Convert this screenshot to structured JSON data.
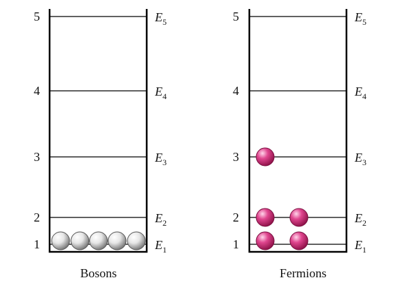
{
  "panels": [
    {
      "caption": "Bosons",
      "levels": [
        {
          "number": "1",
          "energy_symbol": "E",
          "energy_subscript": "1",
          "particles": 5
        },
        {
          "number": "2",
          "energy_symbol": "E",
          "energy_subscript": "2",
          "particles": 0
        },
        {
          "number": "3",
          "energy_symbol": "E",
          "energy_subscript": "3",
          "particles": 0
        },
        {
          "number": "4",
          "energy_symbol": "E",
          "energy_subscript": "4",
          "particles": 0
        },
        {
          "number": "5",
          "energy_symbol": "E",
          "energy_subscript": "5",
          "particles": 0
        }
      ],
      "particle_color": "#c8c8c8"
    },
    {
      "caption": "Fermions",
      "levels": [
        {
          "number": "1",
          "energy_symbol": "E",
          "energy_subscript": "1",
          "particles": 2
        },
        {
          "number": "2",
          "energy_symbol": "E",
          "energy_subscript": "2",
          "particles": 2
        },
        {
          "number": "3",
          "energy_symbol": "E",
          "energy_subscript": "3",
          "particles": 1
        },
        {
          "number": "4",
          "energy_symbol": "E",
          "energy_subscript": "4",
          "particles": 0
        },
        {
          "number": "5",
          "energy_symbol": "E",
          "energy_subscript": "5",
          "particles": 0
        }
      ],
      "particle_color": "#c2185b"
    }
  ]
}
